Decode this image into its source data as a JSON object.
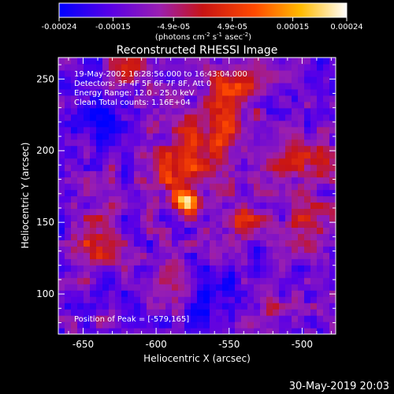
{
  "chart_data": {
    "type": "heatmap",
    "title": "Reconstructed RHESSI Image",
    "xlabel": "Heliocentric X (arcsec)",
    "ylabel": "Heliocentric Y (arcsec)",
    "xlim": [
      -667,
      -477
    ],
    "ylim": [
      72,
      265
    ],
    "x_ticks": [
      -650,
      -600,
      -550,
      -500
    ],
    "x_tick_labels": [
      "-650",
      "-600",
      "-550",
      "-500"
    ],
    "y_ticks": [
      100,
      150,
      200,
      250
    ],
    "y_tick_labels": [
      "100",
      "150",
      "200",
      "250"
    ],
    "colorbar": {
      "range": [
        -0.00024,
        0.00024
      ],
      "ticks": [
        -0.00024,
        -0.00015,
        -4.9e-05,
        4.9e-05,
        0.00015,
        0.00024
      ],
      "tick_labels": [
        "-0.00024",
        "-0.00015",
        "-4.9e-05",
        "4.9e-05",
        "0.00015",
        "0.00024"
      ],
      "units_text": "(photons cm",
      "units_exp1": "-2",
      "units_mid": " s",
      "units_exp2": "-1",
      "units_end": " asec",
      "units_exp3": "-2",
      "units_close": ")"
    },
    "annotations": [
      "19-May-2002 16:28:56.000 to 16:43:04.000",
      "Detectors: 3F 4F 5F 6F 7F 8F, Att 0",
      "Energy Range: 12.0 - 25.0 keV",
      "Clean     Total counts: 1.16E+04"
    ],
    "peak_label": "Position of Peak = [-579,165]",
    "peak": [
      -579,
      165
    ],
    "blobs": [
      {
        "x": -579,
        "y": 165,
        "sigma": 6,
        "amp": 1.05
      },
      {
        "x": -585,
        "y": 185,
        "sigma": 14,
        "amp": 0.55
      },
      {
        "x": -560,
        "y": 210,
        "sigma": 16,
        "amp": 0.55
      },
      {
        "x": -548,
        "y": 245,
        "sigma": 12,
        "amp": 0.6
      },
      {
        "x": -540,
        "y": 150,
        "sigma": 8,
        "amp": 0.7
      },
      {
        "x": -500,
        "y": 195,
        "sigma": 13,
        "amp": 0.55
      },
      {
        "x": -495,
        "y": 150,
        "sigma": 12,
        "amp": 0.45
      },
      {
        "x": -640,
        "y": 135,
        "sigma": 12,
        "amp": 0.5
      },
      {
        "x": -590,
        "y": 110,
        "sigma": 10,
        "amp": 0.35
      },
      {
        "x": -615,
        "y": 255,
        "sigma": 12,
        "amp": 0.35
      },
      {
        "x": -520,
        "y": 95,
        "sigma": 8,
        "amp": 0.3
      },
      {
        "x": -640,
        "y": 225,
        "sigma": 10,
        "amp": -0.45
      },
      {
        "x": -560,
        "y": 100,
        "sigma": 10,
        "amp": -0.35
      }
    ],
    "timestamp": "30-May-2019 20:03"
  }
}
